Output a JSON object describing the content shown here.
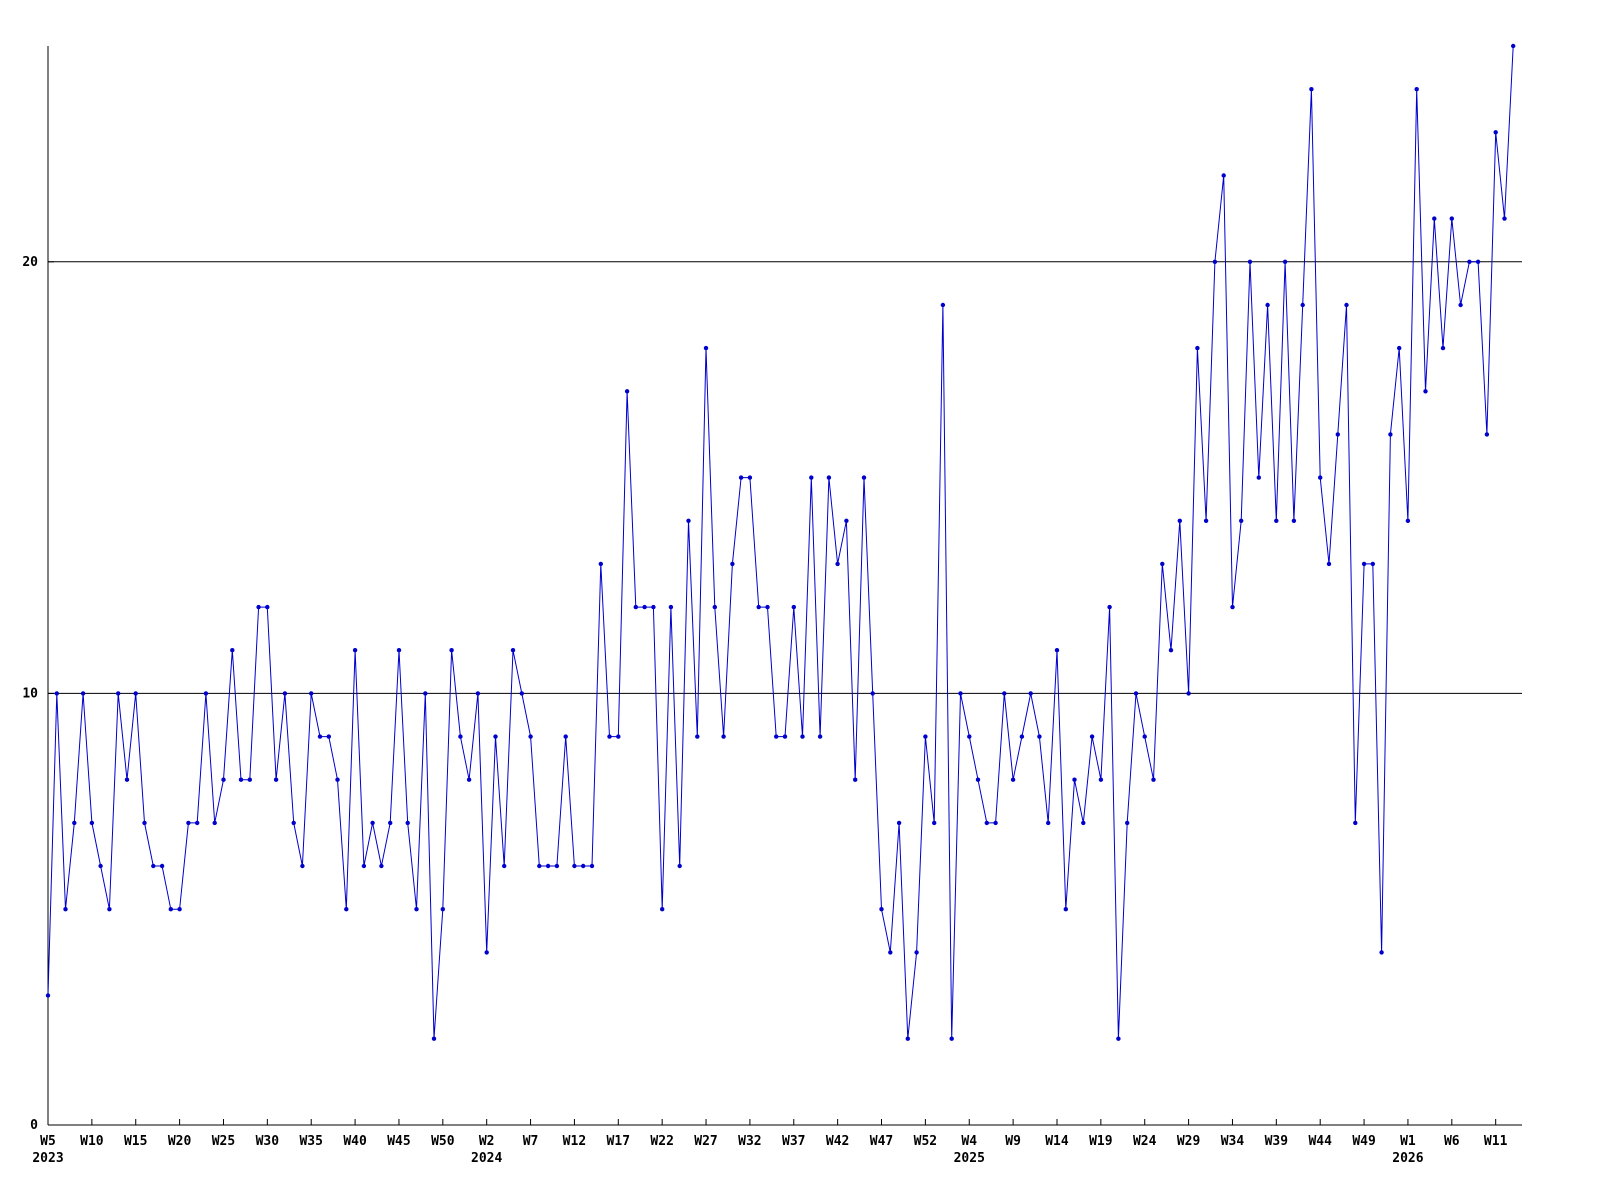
{
  "chart_data": {
    "type": "line",
    "title": "",
    "xlabel": "",
    "ylabel": "",
    "background_color": "#ffffff",
    "line_color": "#0000cd",
    "marker_color": "#0000cd",
    "axis_color": "#000000",
    "grid": true,
    "legend_position": "none",
    "ylim": [
      0,
      25
    ],
    "yticks": [
      0,
      10,
      20
    ],
    "ytick_labels": [
      "0",
      "10",
      "20"
    ],
    "x_tick_step": 5,
    "x_tick_labels": [
      "W5",
      "W10",
      "W15",
      "W20",
      "W25",
      "W30",
      "W35",
      "W40",
      "W45",
      "W50",
      "W2",
      "W7",
      "W12",
      "W17",
      "W22",
      "W27",
      "W32",
      "W37",
      "W42",
      "W47",
      "W52",
      "W4",
      "W9",
      "W14",
      "W19",
      "W24",
      "W29",
      "W34",
      "W39",
      "W44",
      "W49",
      "W1",
      "W6",
      "W11"
    ],
    "year_labels": [
      {
        "tick_index": 0,
        "label": "2023"
      },
      {
        "tick_index": 10,
        "label": "2024"
      },
      {
        "tick_index": 21,
        "label": "2025"
      },
      {
        "tick_index": 31,
        "label": "2026"
      }
    ],
    "values": [
      3,
      10,
      5,
      7,
      10,
      7,
      6,
      5,
      10,
      8,
      10,
      7,
      6,
      6,
      5,
      5,
      7,
      7,
      10,
      7,
      8,
      11,
      8,
      8,
      12,
      12,
      8,
      10,
      7,
      6,
      10,
      9,
      9,
      8,
      5,
      11,
      6,
      7,
      6,
      7,
      11,
      7,
      5,
      10,
      2,
      5,
      11,
      9,
      8,
      10,
      4,
      9,
      6,
      11,
      10,
      9,
      6,
      6,
      6,
      9,
      6,
      6,
      6,
      13,
      9,
      9,
      17,
      12,
      12,
      12,
      5,
      12,
      6,
      14,
      9,
      18,
      12,
      9,
      13,
      15,
      15,
      12,
      12,
      9,
      9,
      12,
      9,
      15,
      9,
      15,
      13,
      14,
      8,
      15,
      10,
      5,
      4,
      7,
      2,
      4,
      9,
      7,
      19,
      2,
      10,
      9,
      8,
      7,
      7,
      10,
      8,
      9,
      10,
      9,
      7,
      11,
      5,
      8,
      7,
      9,
      8,
      12,
      2,
      7,
      10,
      9,
      8,
      13,
      11,
      14,
      10,
      18,
      14,
      20,
      22,
      12,
      14,
      20,
      15,
      19,
      14,
      20,
      14,
      19,
      24,
      15,
      13,
      16,
      19,
      7,
      13,
      13,
      4,
      16,
      18,
      14,
      24,
      17,
      21,
      18,
      21,
      19,
      20,
      20,
      16,
      23,
      21,
      25
    ]
  }
}
